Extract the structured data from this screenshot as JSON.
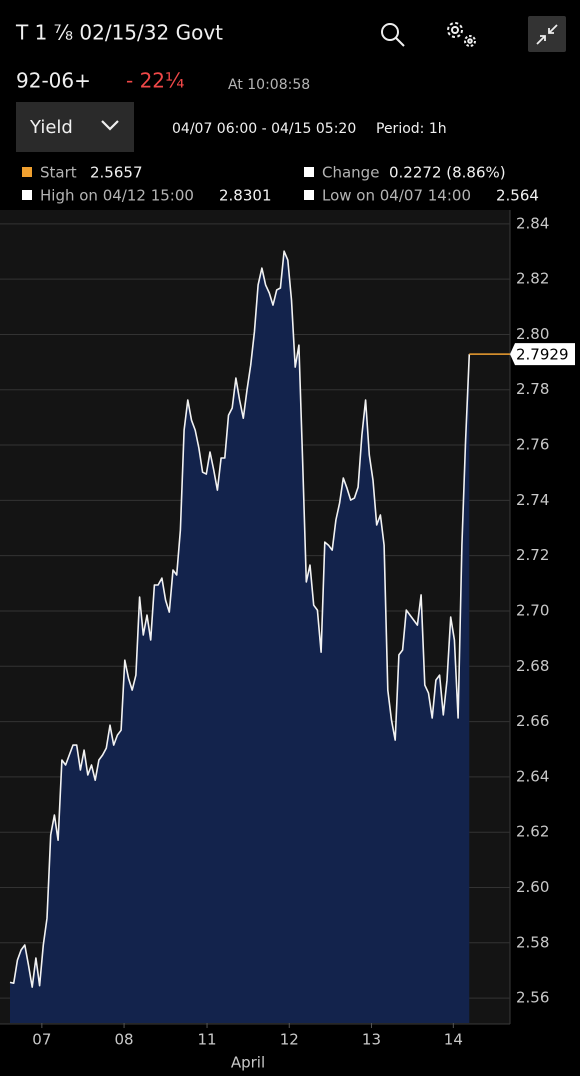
{
  "header": {
    "title": "T 1 ⅞ 02/15/32 Govt",
    "price": "92-06+",
    "change": "- 22¼",
    "time": "At 10:08:58"
  },
  "controls": {
    "field": "Yield",
    "range": "04/07 06:00 - 04/15 05:20",
    "period": "Period: 1h"
  },
  "summary": [
    {
      "label": "Start",
      "value": "2.5657"
    },
    {
      "label": "Change",
      "value": "0.2272 (8.86%)"
    },
    {
      "label": "High on 04/12 15:00",
      "value": "2.8301"
    },
    {
      "label": "Low on 04/07 14:00",
      "value": "2.564"
    }
  ],
  "chart_data": {
    "type": "area",
    "color": "#f2f2f2",
    "fill": "#13234c",
    "last_color": "#f0a030",
    "grid": true,
    "x_label": "April",
    "values": [
      2.5657,
      2.5654,
      2.5737,
      2.5774,
      2.5792,
      2.5719,
      2.564,
      2.5745,
      2.5645,
      2.5792,
      2.5889,
      2.619,
      2.6262,
      2.6171,
      2.6461,
      2.6443,
      2.6479,
      2.6515,
      2.6515,
      2.6425,
      2.6497,
      2.6407,
      2.6443,
      2.6388,
      2.6461,
      2.6479,
      2.6504,
      2.6587,
      2.6515,
      2.6551,
      2.6569,
      2.6822,
      2.6757,
      2.6714,
      2.6768,
      2.705,
      2.6913,
      2.6985,
      2.6895,
      2.7094,
      2.7094,
      2.7119,
      2.7039,
      2.6996,
      2.7148,
      2.713,
      2.7293,
      2.7654,
      2.7763,
      2.769,
      2.7654,
      2.7589,
      2.7502,
      2.7495,
      2.7575,
      2.751,
      2.7437,
      2.7553,
      2.7553,
      2.7708,
      2.7734,
      2.7842,
      2.7763,
      2.7697,
      2.7799,
      2.7889,
      2.8009,
      2.8179,
      2.824,
      2.8179,
      2.815,
      2.8106,
      2.8161,
      2.8168,
      2.8301,
      2.8269,
      2.8124,
      2.7882,
      2.7961,
      2.7546,
      2.7105,
      2.7166,
      2.7021,
      2.7003,
      2.6851,
      2.7249,
      2.7238,
      2.722,
      2.7329,
      2.739,
      2.7481,
      2.7444,
      2.7401,
      2.7408,
      2.7448,
      2.7636,
      2.7763,
      2.7564,
      2.7473,
      2.7311,
      2.7347,
      2.7238,
      2.6714,
      2.6605,
      2.6533,
      2.6841,
      2.6859,
      2.7003,
      2.6985,
      2.6967,
      2.6949,
      2.7058,
      2.6732,
      2.6703,
      2.6613,
      2.675,
      2.6768,
      2.6624,
      2.675,
      2.6978,
      2.6895,
      2.6613,
      2.7238,
      2.7618,
      2.7929
    ],
    "xlim": [
      0,
      135
    ],
    "xticks": [
      {
        "value": 8.6,
        "label": "07"
      },
      {
        "value": 30.8,
        "label": "08"
      },
      {
        "value": 53.2,
        "label": "11"
      },
      {
        "value": 75.4,
        "label": "12"
      },
      {
        "value": 97.6,
        "label": "13"
      },
      {
        "value": 119.7,
        "label": "14"
      }
    ],
    "ylim": [
      2.551,
      2.845
    ],
    "yticks": [
      2.56,
      2.58,
      {
        "value": 2.6,
        "label": "2.60"
      },
      2.62,
      2.64,
      2.66,
      2.68,
      {
        "value": 2.7,
        "label": "2.70"
      },
      2.72,
      2.74,
      2.76,
      2.78,
      {
        "value": 2.8,
        "label": "2.80"
      },
      2.82,
      2.84
    ]
  }
}
